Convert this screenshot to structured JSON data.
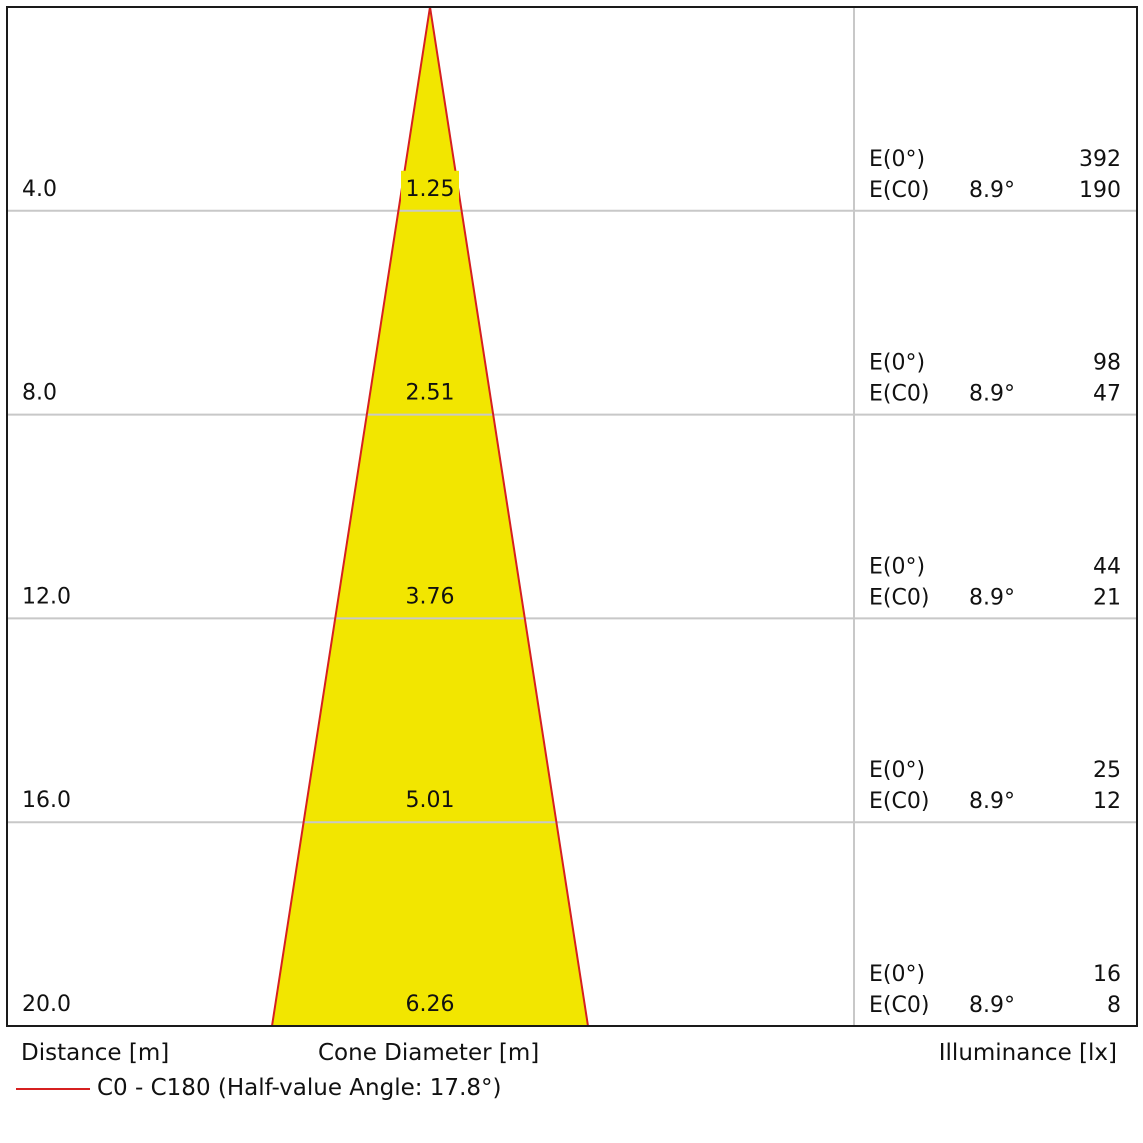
{
  "chart_data": {
    "type": "cone-diagram",
    "legend": [
      {
        "name": "C0 - C180 (Half-value Angle: 17.8°)",
        "color": "#d62020"
      }
    ],
    "half_value_angle": 17.8,
    "cone_fill": "#f2e600",
    "cone_stroke": "#d62020",
    "max_distance": 20.0,
    "rows": [
      {
        "distance": "4.0",
        "diameter": "1.25",
        "e0_label": "E(0°)",
        "e0": "392",
        "ec0_label": "E(C0)",
        "angle": "8.9°",
        "ec0": "190"
      },
      {
        "distance": "8.0",
        "diameter": "2.51",
        "e0_label": "E(0°)",
        "e0": "98",
        "ec0_label": "E(C0)",
        "angle": "8.9°",
        "ec0": "47"
      },
      {
        "distance": "12.0",
        "diameter": "3.76",
        "e0_label": "E(0°)",
        "e0": "44",
        "ec0_label": "E(C0)",
        "angle": "8.9°",
        "ec0": "21"
      },
      {
        "distance": "16.0",
        "diameter": "5.01",
        "e0_label": "E(0°)",
        "e0": "25",
        "ec0_label": "E(C0)",
        "angle": "8.9°",
        "ec0": "12"
      },
      {
        "distance": "20.0",
        "diameter": "6.26",
        "e0_label": "E(0°)",
        "e0": "16",
        "ec0_label": "E(C0)",
        "angle": "8.9°",
        "ec0": "8"
      }
    ]
  },
  "labels": {
    "distance_axis": "Distance [m]",
    "diameter_axis": "Cone Diameter [m]",
    "illuminance_axis": "Illuminance [lx]"
  }
}
